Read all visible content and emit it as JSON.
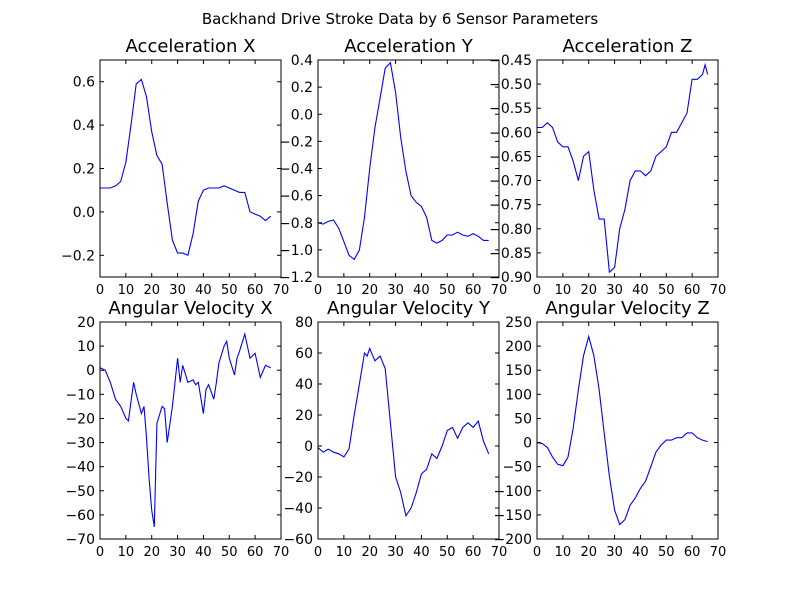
{
  "figure": {
    "title": "Backhand Drive Stroke Data by 6 Sensor Parameters",
    "line_color": "#0000ff"
  },
  "chart_data": [
    {
      "type": "line",
      "title": "Acceleration X",
      "xlim": [
        0,
        70
      ],
      "ylim": [
        -0.3,
        0.7
      ],
      "xticks": [
        0,
        10,
        20,
        30,
        40,
        50,
        60,
        70
      ],
      "yticks": [
        -0.2,
        0.0,
        0.2,
        0.4,
        0.6
      ],
      "ytick_labels": [
        "−0.2",
        "0.0",
        "0.2",
        "0.4",
        "0.6"
      ],
      "grid": false,
      "series": [
        {
          "x": [
            0,
            2,
            4,
            6,
            8,
            10,
            12,
            14,
            16,
            18,
            20,
            22,
            24,
            26,
            28,
            30,
            32,
            34,
            36,
            38,
            40,
            42,
            44,
            46,
            48,
            50,
            52,
            54,
            56,
            58,
            60,
            62,
            64,
            66
          ],
          "y": [
            0.11,
            0.11,
            0.11,
            0.12,
            0.14,
            0.23,
            0.4,
            0.59,
            0.61,
            0.53,
            0.37,
            0.26,
            0.22,
            0.04,
            -0.13,
            -0.19,
            -0.19,
            -0.2,
            -0.1,
            0.05,
            0.1,
            0.11,
            0.11,
            0.11,
            0.12,
            0.11,
            0.1,
            0.09,
            0.09,
            0.0,
            -0.01,
            -0.02,
            -0.04,
            -0.02
          ]
        }
      ]
    },
    {
      "type": "line",
      "title": "Acceleration Y",
      "xlim": [
        0,
        70
      ],
      "ylim": [
        -1.2,
        0.4
      ],
      "xticks": [
        0,
        10,
        20,
        30,
        40,
        50,
        60,
        70
      ],
      "yticks": [
        -1.2,
        -1.0,
        -0.8,
        -0.6,
        -0.4,
        -0.2,
        0.0,
        0.2,
        0.4
      ],
      "ytick_labels": [
        "−1.2",
        "−1.0",
        "−0.8",
        "−0.6",
        "−0.4",
        "−0.2",
        "0.0",
        "0.2",
        "0.4"
      ],
      "grid": false,
      "series": [
        {
          "x": [
            0,
            2,
            4,
            6,
            8,
            10,
            12,
            14,
            16,
            18,
            20,
            22,
            24,
            26,
            28,
            30,
            32,
            34,
            36,
            38,
            40,
            42,
            44,
            46,
            48,
            50,
            52,
            54,
            56,
            58,
            60,
            62,
            64,
            66
          ],
          "y": [
            -0.8,
            -0.81,
            -0.79,
            -0.78,
            -0.84,
            -0.94,
            -1.04,
            -1.07,
            -1.0,
            -0.76,
            -0.4,
            -0.1,
            0.12,
            0.34,
            0.38,
            0.16,
            -0.17,
            -0.42,
            -0.6,
            -0.65,
            -0.68,
            -0.76,
            -0.93,
            -0.95,
            -0.93,
            -0.89,
            -0.89,
            -0.87,
            -0.89,
            -0.9,
            -0.88,
            -0.9,
            -0.93,
            -0.93
          ]
        }
      ]
    },
    {
      "type": "line",
      "title": "Acceleration Z",
      "xlim": [
        0,
        70
      ],
      "ylim": [
        -0.9,
        -0.45
      ],
      "xticks": [
        0,
        10,
        20,
        30,
        40,
        50,
        60,
        70
      ],
      "yticks": [
        -0.9,
        -0.85,
        -0.8,
        -0.75,
        -0.7,
        -0.65,
        -0.6,
        -0.55,
        -0.5,
        -0.45
      ],
      "ytick_labels": [
        "−0.90",
        "−0.85",
        "−0.80",
        "−0.75",
        "−0.70",
        "−0.65",
        "−0.60",
        "−0.55",
        "−0.50",
        "−0.45"
      ],
      "grid": false,
      "series": [
        {
          "x": [
            0,
            2,
            4,
            6,
            8,
            10,
            12,
            14,
            16,
            18,
            20,
            22,
            24,
            26,
            28,
            30,
            32,
            34,
            36,
            38,
            40,
            42,
            44,
            46,
            48,
            50,
            52,
            54,
            56,
            58,
            60,
            62,
            64,
            65,
            66
          ],
          "y": [
            -0.59,
            -0.59,
            -0.58,
            -0.59,
            -0.62,
            -0.63,
            -0.63,
            -0.66,
            -0.7,
            -0.65,
            -0.64,
            -0.72,
            -0.78,
            -0.78,
            -0.89,
            -0.88,
            -0.8,
            -0.76,
            -0.7,
            -0.68,
            -0.68,
            -0.69,
            -0.68,
            -0.65,
            -0.64,
            -0.63,
            -0.6,
            -0.6,
            -0.58,
            -0.56,
            -0.49,
            -0.49,
            -0.48,
            -0.46,
            -0.48
          ]
        }
      ]
    },
    {
      "type": "line",
      "title": "Angular Velocity X",
      "xlim": [
        0,
        70
      ],
      "ylim": [
        -70,
        20
      ],
      "xticks": [
        0,
        10,
        20,
        30,
        40,
        50,
        60,
        70
      ],
      "yticks": [
        -70,
        -60,
        -50,
        -40,
        -30,
        -20,
        -10,
        0,
        10,
        20
      ],
      "ytick_labels": [
        "−70",
        "−60",
        "−50",
        "−40",
        "−30",
        "−20",
        "−10",
        "0",
        "10",
        "20"
      ],
      "grid": false,
      "series": [
        {
          "x": [
            0,
            2,
            4,
            6,
            8,
            10,
            11,
            13,
            14,
            16,
            17,
            18,
            19,
            20,
            21,
            22,
            24,
            25,
            26,
            28,
            29,
            30,
            31,
            32,
            34,
            36,
            37,
            38,
            40,
            41,
            42,
            44,
            45,
            46,
            48,
            49,
            50,
            52,
            53,
            54,
            56,
            58,
            60,
            62,
            64,
            66
          ],
          "y": [
            1,
            0,
            -5,
            -12,
            -15,
            -20,
            -21,
            -5,
            -10,
            -18,
            -15,
            -28,
            -45,
            -58,
            -65,
            -22,
            -15,
            -16,
            -30,
            -15,
            -5,
            5,
            -5,
            2,
            -5,
            -4,
            -6,
            -5,
            -18,
            -8,
            -6,
            -12,
            -5,
            3,
            10,
            12,
            5,
            -2,
            5,
            8,
            15,
            5,
            7,
            -3,
            2,
            1
          ]
        }
      ]
    },
    {
      "type": "line",
      "title": "Angular Velocity Y",
      "xlim": [
        0,
        70
      ],
      "ylim": [
        -60,
        80
      ],
      "xticks": [
        0,
        10,
        20,
        30,
        40,
        50,
        60,
        70
      ],
      "yticks": [
        -60,
        -40,
        -20,
        0,
        20,
        40,
        60,
        80
      ],
      "ytick_labels": [
        "−60",
        "−40",
        "−20",
        "0",
        "20",
        "40",
        "60",
        "80"
      ],
      "grid": false,
      "series": [
        {
          "x": [
            0,
            2,
            4,
            6,
            8,
            10,
            12,
            14,
            16,
            18,
            19,
            20,
            22,
            24,
            26,
            28,
            30,
            32,
            34,
            36,
            38,
            40,
            42,
            44,
            46,
            48,
            50,
            52,
            54,
            56,
            58,
            60,
            62,
            64,
            66
          ],
          "y": [
            -1,
            -4,
            -2,
            -4,
            -5,
            -7,
            -2,
            20,
            40,
            60,
            58,
            63,
            55,
            58,
            50,
            15,
            -20,
            -30,
            -45,
            -40,
            -30,
            -18,
            -15,
            -5,
            -8,
            0,
            10,
            12,
            5,
            12,
            15,
            12,
            16,
            3,
            -5
          ]
        }
      ]
    },
    {
      "type": "line",
      "title": "Angular Velocity Z",
      "xlim": [
        0,
        70
      ],
      "ylim": [
        -200,
        250
      ],
      "xticks": [
        0,
        10,
        20,
        30,
        40,
        50,
        60,
        70
      ],
      "yticks": [
        -200,
        -150,
        -100,
        -50,
        0,
        50,
        100,
        150,
        200,
        250
      ],
      "ytick_labels": [
        "−200",
        "−150",
        "−100",
        "−50",
        "0",
        "50",
        "100",
        "150",
        "200",
        "250"
      ],
      "grid": false,
      "series": [
        {
          "x": [
            0,
            2,
            4,
            6,
            8,
            10,
            12,
            14,
            16,
            18,
            20,
            22,
            24,
            26,
            28,
            30,
            32,
            34,
            36,
            38,
            40,
            42,
            44,
            46,
            48,
            50,
            52,
            54,
            56,
            58,
            60,
            62,
            64,
            66
          ],
          "y": [
            0,
            -2,
            -10,
            -30,
            -45,
            -48,
            -30,
            30,
            110,
            180,
            220,
            180,
            110,
            20,
            -70,
            -140,
            -170,
            -160,
            -130,
            -115,
            -95,
            -80,
            -50,
            -20,
            -5,
            5,
            5,
            10,
            10,
            20,
            20,
            10,
            5,
            2
          ]
        }
      ]
    }
  ]
}
